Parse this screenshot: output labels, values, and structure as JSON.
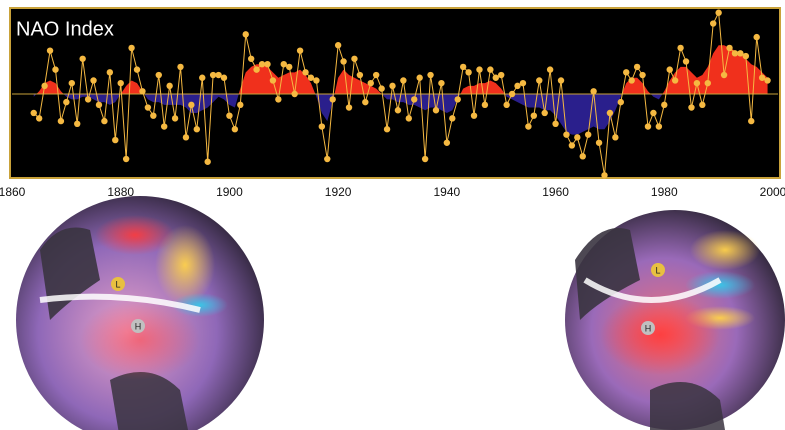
{
  "chart_data": {
    "type": "line",
    "title": "NAO Index",
    "xlim": [
      1860,
      2000
    ],
    "xticks": [
      1860,
      1880,
      1900,
      1920,
      1940,
      1960,
      1980,
      2000
    ],
    "ylim": [
      -3.1,
      3.1
    ],
    "dot_color": "#f5b942",
    "positive_color": "#f0301c",
    "negative_color": "#2a1f8c",
    "x": [
      1864,
      1865,
      1866,
      1867,
      1868,
      1869,
      1870,
      1871,
      1872,
      1873,
      1874,
      1875,
      1876,
      1877,
      1878,
      1879,
      1880,
      1881,
      1882,
      1883,
      1884,
      1885,
      1886,
      1887,
      1888,
      1889,
      1890,
      1891,
      1892,
      1893,
      1894,
      1895,
      1896,
      1897,
      1898,
      1899,
      1900,
      1901,
      1902,
      1903,
      1904,
      1905,
      1906,
      1907,
      1908,
      1909,
      1910,
      1911,
      1912,
      1913,
      1914,
      1915,
      1916,
      1917,
      1918,
      1919,
      1920,
      1921,
      1922,
      1923,
      1924,
      1925,
      1926,
      1927,
      1928,
      1929,
      1930,
      1931,
      1932,
      1933,
      1934,
      1935,
      1936,
      1937,
      1938,
      1939,
      1940,
      1941,
      1942,
      1943,
      1944,
      1945,
      1946,
      1947,
      1948,
      1949,
      1950,
      1951,
      1952,
      1953,
      1954,
      1955,
      1956,
      1957,
      1958,
      1959,
      1960,
      1961,
      1962,
      1963,
      1964,
      1965,
      1966,
      1967,
      1968,
      1969,
      1970,
      1971,
      1972,
      1973,
      1974,
      1975,
      1976,
      1977,
      1978,
      1979,
      1980,
      1981,
      1982,
      1983,
      1984,
      1985,
      1986,
      1987,
      1988,
      1989,
      1990,
      1991,
      1992,
      1993,
      1994,
      1995,
      1996,
      1997,
      1998,
      1999
    ],
    "values": [
      -0.7,
      -0.9,
      0.3,
      1.6,
      0.9,
      -1.0,
      -0.3,
      0.4,
      -1.1,
      1.3,
      -0.2,
      0.5,
      -0.4,
      -1.0,
      0.8,
      -1.7,
      0.4,
      -2.4,
      1.7,
      0.9,
      0.1,
      -0.5,
      -0.8,
      0.7,
      -1.2,
      0.3,
      -0.9,
      1.0,
      -1.6,
      -0.4,
      -1.3,
      0.6,
      -2.5,
      0.7,
      0.7,
      0.6,
      -0.8,
      -1.3,
      -0.4,
      2.2,
      1.3,
      0.9,
      1.1,
      1.1,
      0.5,
      -0.2,
      1.1,
      1.0,
      0.0,
      1.6,
      0.8,
      0.6,
      0.5,
      -1.2,
      -2.4,
      -0.2,
      1.8,
      1.2,
      -0.5,
      1.3,
      0.7,
      -0.3,
      0.4,
      0.7,
      0.2,
      -1.3,
      0.3,
      -0.6,
      0.5,
      -0.9,
      -0.2,
      0.6,
      -2.4,
      0.7,
      -0.6,
      0.4,
      -1.8,
      -0.9,
      -0.2,
      1.0,
      0.8,
      -0.8,
      0.9,
      -0.4,
      0.9,
      0.6,
      0.7,
      -0.4,
      0.0,
      0.3,
      0.4,
      -1.2,
      -0.8,
      0.5,
      -0.7,
      0.9,
      -1.1,
      0.5,
      -1.5,
      -1.9,
      -1.6,
      -2.3,
      -1.5,
      0.1,
      -1.8,
      -3.0,
      -0.7,
      -1.6,
      -0.3,
      0.8,
      0.5,
      1.0,
      0.7,
      -1.2,
      -0.7,
      -1.2,
      -0.4,
      0.9,
      0.5,
      1.7,
      1.2,
      -0.5,
      0.4,
      -0.4,
      0.4,
      2.6,
      3.0,
      0.7,
      1.7,
      1.5,
      1.5,
      1.4,
      -1.0,
      2.1,
      0.6,
      0.5
    ],
    "smoothed_values": [
      -0.1,
      0.1,
      0.4,
      0.5,
      0.4,
      0.1,
      -0.1,
      -0.2,
      -0.2,
      -0.1,
      -0.1,
      -0.2,
      -0.3,
      -0.3,
      -0.4,
      -0.3,
      0.0,
      0.3,
      0.5,
      0.4,
      0.1,
      -0.2,
      -0.3,
      -0.3,
      -0.4,
      -0.4,
      -0.4,
      -0.4,
      -0.5,
      -0.7,
      -0.7,
      -0.6,
      -0.5,
      -0.3,
      -0.1,
      -0.2,
      -0.4,
      -0.5,
      0.2,
      0.8,
      1.0,
      1.1,
      1.1,
      1.0,
      0.8,
      0.6,
      0.7,
      0.8,
      0.8,
      0.9,
      0.7,
      0.4,
      -0.1,
      -0.7,
      -1.0,
      -0.3,
      0.6,
      0.9,
      0.7,
      0.6,
      0.5,
      0.4,
      0.3,
      0.2,
      0.0,
      -0.2,
      -0.2,
      -0.3,
      -0.3,
      -0.4,
      -0.4,
      -0.5,
      -0.6,
      -0.5,
      -0.5,
      -0.6,
      -0.7,
      -0.6,
      -0.2,
      0.2,
      0.3,
      0.3,
      0.4,
      0.4,
      0.5,
      0.4,
      0.2,
      -0.1,
      -0.2,
      -0.3,
      -0.4,
      -0.5,
      -0.5,
      -0.5,
      -0.6,
      -0.6,
      -0.8,
      -1.1,
      -1.4,
      -1.5,
      -1.5,
      -1.4,
      -1.3,
      -1.2,
      -1.3,
      -1.3,
      -1.0,
      -0.6,
      -0.1,
      0.4,
      0.6,
      0.6,
      0.4,
      0.1,
      -0.1,
      -0.2,
      0.1,
      0.5,
      0.8,
      1.0,
      1.0,
      0.8,
      0.6,
      0.7,
      1.0,
      1.5,
      1.8,
      1.8,
      1.7,
      1.6,
      1.5,
      1.3,
      1.1,
      1.0,
      0.8,
      0.6
    ],
    "globe_labels": [
      "L",
      "H"
    ]
  }
}
